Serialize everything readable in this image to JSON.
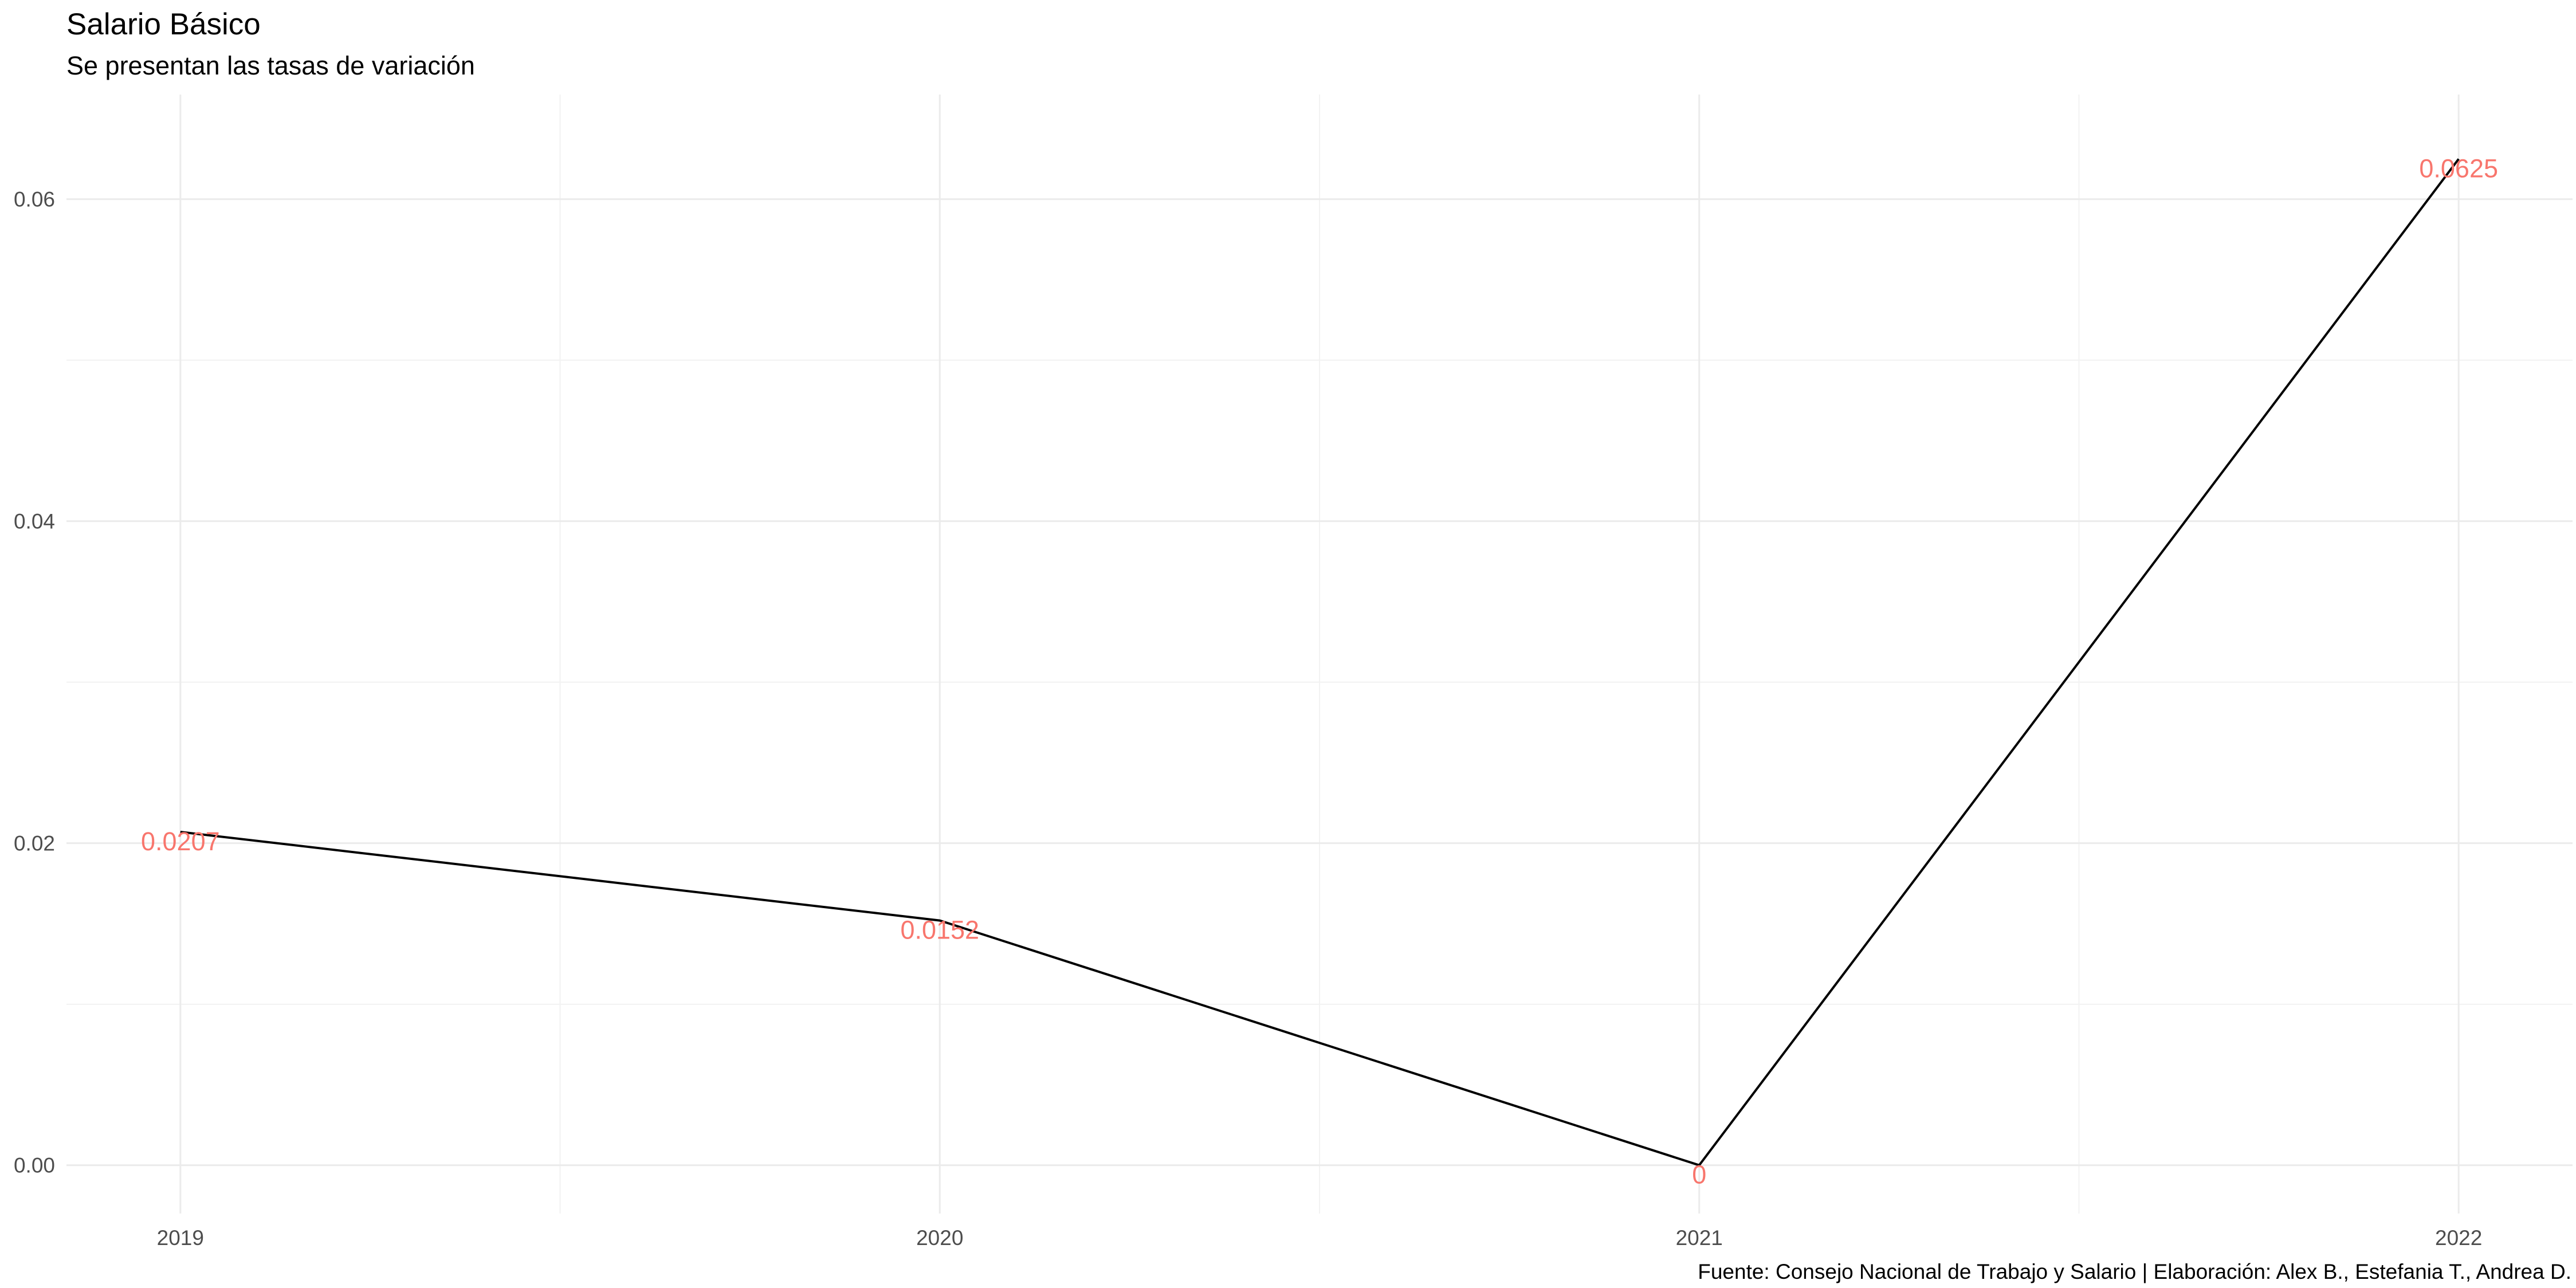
{
  "chart_data": {
    "type": "line",
    "title": "Salario Básico",
    "subtitle": "Se presentan las tasas de variación",
    "caption": "Fuente: Consejo Nacional de Trabajo y Salario | Elaboración: Alex B., Estefania T., Andrea D.",
    "xlabel": "",
    "ylabel": "",
    "x": [
      2019,
      2020,
      2021,
      2022
    ],
    "series": [
      {
        "values": [
          0.0207,
          0.0152,
          0,
          0.0625
        ]
      }
    ],
    "data_labels": [
      "0.0207",
      "0.0152",
      "0",
      "0.0625"
    ],
    "xticks": [
      "2019",
      "2020",
      "2021",
      "2022"
    ],
    "yticks": [
      "0.00",
      "0.02",
      "0.04",
      "0.06"
    ],
    "ytick_values": [
      0,
      0.02,
      0.04,
      0.06
    ],
    "xlim": [
      2018.85,
      2022.15
    ],
    "ylim": [
      -0.003,
      0.0665
    ],
    "grid": true,
    "legend": "none",
    "colors": {
      "line": "#000000",
      "label": "#f8766d"
    }
  }
}
